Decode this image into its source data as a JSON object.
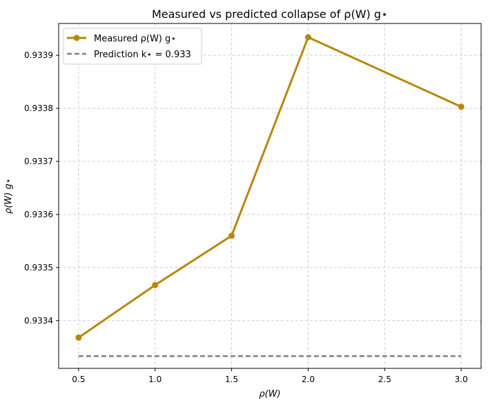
{
  "chart_data": {
    "type": "line",
    "title": "Measured vs predicted collapse of ρ(W) g⋆",
    "xlabel": "ρ(W)",
    "ylabel": "ρ(W) g⋆",
    "x": [
      0.5,
      1.0,
      1.5,
      2.0,
      3.0
    ],
    "xticks": [
      "0.5",
      "1.0",
      "1.5",
      "2.0",
      "2.5",
      "3.0"
    ],
    "yticks": [
      "0.9334",
      "0.9335",
      "0.9336",
      "0.9337",
      "0.9338",
      "0.9339"
    ],
    "xlim": [
      0.37,
      3.13
    ],
    "ylim": [
      0.93331,
      0.93396
    ],
    "grid": true,
    "legend_position": "top-left",
    "series": [
      {
        "name": "Measured ρ(W) g⋆",
        "style": "solid-marker",
        "color": "#b8860b",
        "values": [
          0.933368,
          0.933467,
          0.93356,
          0.933934,
          0.933803
        ]
      },
      {
        "name": "Prediction k⋆ = 0.933",
        "style": "dashed",
        "color": "#808080",
        "values": [
          0.933333,
          0.933333,
          0.933333,
          0.933333,
          0.933333
        ]
      }
    ]
  }
}
